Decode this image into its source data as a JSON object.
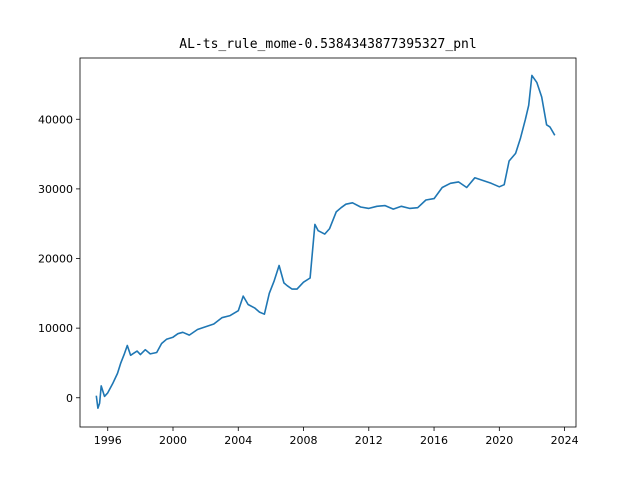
{
  "chart_data": {
    "type": "line",
    "title": "AL-ts_rule_mome-0.5384343877395327_pnl",
    "xlabel": "",
    "ylabel": "",
    "xlim": [
      1994.3,
      2024.7
    ],
    "ylim": [
      -4200,
      48800
    ],
    "x_ticks": [
      1996,
      2000,
      2004,
      2008,
      2012,
      2016,
      2020,
      2024
    ],
    "x_tick_labels": [
      "1996",
      "2000",
      "2004",
      "2008",
      "2012",
      "2016",
      "2020",
      "2024"
    ],
    "y_ticks": [
      0,
      10000,
      20000,
      30000,
      40000
    ],
    "y_tick_labels": [
      "0",
      "10000",
      "20000",
      "30000",
      "40000"
    ],
    "grid": false,
    "legend": "none",
    "series": [
      {
        "color": "#1f77b4",
        "x": [
          1995.3,
          1995.4,
          1995.5,
          1995.6,
          1995.8,
          1996.0,
          1996.3,
          1996.6,
          1996.8,
          1997.0,
          1997.2,
          1997.4,
          1997.6,
          1997.8,
          1998.0,
          1998.3,
          1998.6,
          1999.0,
          1999.3,
          1999.6,
          2000.0,
          2000.3,
          2000.6,
          2001.0,
          2001.5,
          2002.0,
          2002.5,
          2003.0,
          2003.5,
          2004.0,
          2004.3,
          2004.6,
          2005.0,
          2005.3,
          2005.6,
          2005.9,
          2006.2,
          2006.5,
          2006.8,
          2007.0,
          2007.3,
          2007.6,
          2008.0,
          2008.4,
          2008.7,
          2008.9,
          2009.3,
          2009.6,
          2010.0,
          2010.3,
          2010.6,
          2011.0,
          2011.5,
          2012.0,
          2012.5,
          2013.0,
          2013.5,
          2014.0,
          2014.5,
          2015.0,
          2015.5,
          2016.0,
          2016.5,
          2017.0,
          2017.5,
          2018.0,
          2018.5,
          2019.0,
          2019.5,
          2020.0,
          2020.3,
          2020.6,
          2021.0,
          2021.3,
          2021.6,
          2021.8,
          2022.0,
          2022.3,
          2022.6,
          2022.9,
          2023.1,
          2023.4
        ],
        "values": [
          300,
          -1500,
          -800,
          1700,
          200,
          700,
          2000,
          3500,
          5000,
          6200,
          7500,
          6100,
          6400,
          6700,
          6200,
          6900,
          6300,
          6500,
          7800,
          8400,
          8700,
          9200,
          9400,
          9000,
          9800,
          10200,
          10600,
          11500,
          11800,
          12500,
          14600,
          13400,
          12900,
          12300,
          12000,
          15000,
          16800,
          19000,
          16500,
          16100,
          15600,
          15600,
          16600,
          17200,
          24900,
          24000,
          23500,
          24300,
          26700,
          27300,
          27800,
          28000,
          27400,
          27200,
          27500,
          27600,
          27100,
          27500,
          27200,
          27300,
          28400,
          28600,
          30200,
          30800,
          31000,
          30200,
          31600,
          31200,
          30800,
          30300,
          30600,
          34000,
          35100,
          37300,
          40000,
          42000,
          46300,
          45300,
          43200,
          39200,
          38900,
          37700
        ]
      }
    ]
  }
}
